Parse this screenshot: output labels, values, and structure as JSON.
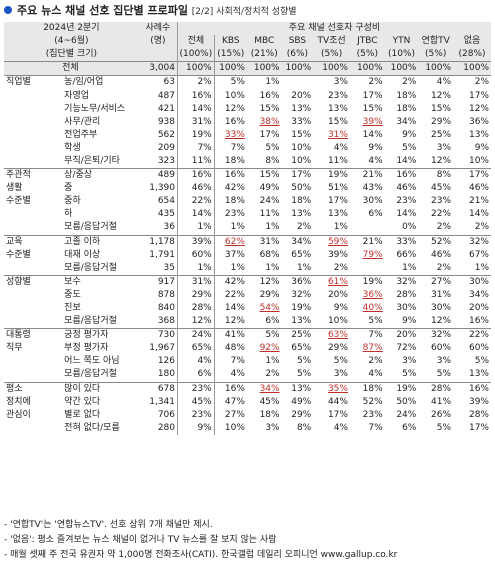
{
  "title": {
    "main": "주요 뉴스 채널 선호 집단별 프로파일",
    "sub": "[2/2] 사회적/정치적 성향별"
  },
  "header": {
    "period_line1": "2024년 2분기",
    "period_line2": "(4~6월)",
    "group_size_label": "(집단별 크기)",
    "sample_line1": "사례수",
    "sample_line2": "(명)",
    "channel_group": "주요 채널 선호자 구성비",
    "columns": [
      "전체",
      "KBS",
      "MBC",
      "SBS",
      "TV조선",
      "JTBC",
      "YTN",
      "연합TV",
      "없음"
    ],
    "sizes": [
      "(100%)",
      "(15%)",
      "(21%)",
      "(6%)",
      "(5%)",
      "(5%)",
      "(10%)",
      "(5%)",
      "(28%)"
    ]
  },
  "rows": [
    {
      "cat": "전체",
      "sub": "",
      "n": "3,004",
      "v": [
        "100%",
        "100%",
        "100%",
        "100%",
        "100%",
        "100%",
        "100%",
        "100%",
        "100%"
      ],
      "total": true
    },
    {
      "cat": "직업별",
      "sub": "농/임/어업",
      "n": "63",
      "v": [
        "2%",
        "5%",
        "1%",
        "",
        "3%",
        "2%",
        "2%",
        "4%",
        "2%"
      ],
      "sep": true
    },
    {
      "cat": "",
      "sub": "자영업",
      "n": "487",
      "v": [
        "16%",
        "10%",
        "16%",
        "20%",
        "23%",
        "17%",
        "18%",
        "12%",
        "17%"
      ]
    },
    {
      "cat": "",
      "sub": "기능노무/서비스",
      "n": "421",
      "v": [
        "14%",
        "12%",
        "15%",
        "13%",
        "13%",
        "15%",
        "18%",
        "15%",
        "12%"
      ]
    },
    {
      "cat": "",
      "sub": "사무/관리",
      "n": "938",
      "v": [
        "31%",
        "16%",
        "38%",
        "33%",
        "15%",
        "39%",
        "34%",
        "29%",
        "36%"
      ],
      "u": [
        2,
        5
      ]
    },
    {
      "cat": "",
      "sub": "전업주부",
      "n": "562",
      "v": [
        "19%",
        "33%",
        "17%",
        "15%",
        "31%",
        "14%",
        "9%",
        "25%",
        "13%"
      ],
      "u": [
        1,
        4
      ]
    },
    {
      "cat": "",
      "sub": "학생",
      "n": "209",
      "v": [
        "7%",
        "7%",
        "5%",
        "10%",
        "4%",
        "9%",
        "5%",
        "3%",
        "9%"
      ]
    },
    {
      "cat": "",
      "sub": "무직/은퇴/기타",
      "n": "323",
      "v": [
        "11%",
        "18%",
        "8%",
        "10%",
        "11%",
        "4%",
        "14%",
        "12%",
        "10%"
      ]
    },
    {
      "cat": "주관적",
      "sub": "상/중상",
      "n": "489",
      "v": [
        "16%",
        "16%",
        "15%",
        "17%",
        "19%",
        "21%",
        "16%",
        "8%",
        "17%"
      ],
      "sep": true
    },
    {
      "cat": "생활",
      "sub": "중",
      "n": "1,390",
      "v": [
        "46%",
        "42%",
        "49%",
        "50%",
        "51%",
        "43%",
        "46%",
        "45%",
        "46%"
      ]
    },
    {
      "cat": "수준별",
      "sub": "중하",
      "n": "654",
      "v": [
        "22%",
        "18%",
        "24%",
        "18%",
        "17%",
        "30%",
        "23%",
        "23%",
        "21%"
      ]
    },
    {
      "cat": "",
      "sub": "하",
      "n": "435",
      "v": [
        "14%",
        "23%",
        "11%",
        "13%",
        "13%",
        "6%",
        "14%",
        "22%",
        "14%"
      ]
    },
    {
      "cat": "",
      "sub": "모름/응답거절",
      "n": "36",
      "v": [
        "1%",
        "1%",
        "1%",
        "2%",
        "1%",
        "",
        "0%",
        "2%",
        "2%"
      ]
    },
    {
      "cat": "교육",
      "sub": "고졸 이하",
      "n": "1,178",
      "v": [
        "39%",
        "62%",
        "31%",
        "34%",
        "59%",
        "21%",
        "33%",
        "52%",
        "32%"
      ],
      "sep": true,
      "u": [
        1,
        4
      ]
    },
    {
      "cat": "수준별",
      "sub": "대재 이상",
      "n": "1,791",
      "v": [
        "60%",
        "37%",
        "68%",
        "65%",
        "39%",
        "79%",
        "66%",
        "46%",
        "67%"
      ],
      "u": [
        5
      ]
    },
    {
      "cat": "",
      "sub": "모름/응답거절",
      "n": "35",
      "v": [
        "1%",
        "1%",
        "1%",
        "1%",
        "2%",
        "",
        "1%",
        "2%",
        "1%"
      ]
    },
    {
      "cat": "성향별",
      "sub": "보수",
      "n": "917",
      "v": [
        "31%",
        "42%",
        "12%",
        "36%",
        "61%",
        "19%",
        "32%",
        "27%",
        "30%"
      ],
      "sep": true,
      "u": [
        4
      ]
    },
    {
      "cat": "",
      "sub": "중도",
      "n": "878",
      "v": [
        "29%",
        "22%",
        "29%",
        "32%",
        "20%",
        "36%",
        "28%",
        "31%",
        "34%"
      ],
      "u": [
        5
      ]
    },
    {
      "cat": "",
      "sub": "진보",
      "n": "840",
      "v": [
        "28%",
        "14%",
        "54%",
        "19%",
        "9%",
        "40%",
        "30%",
        "30%",
        "20%"
      ],
      "u": [
        2,
        5
      ]
    },
    {
      "cat": "",
      "sub": "모름/응답거절",
      "n": "368",
      "v": [
        "12%",
        "12%",
        "6%",
        "13%",
        "10%",
        "5%",
        "9%",
        "12%",
        "16%"
      ]
    },
    {
      "cat": "대통령",
      "sub": "긍정 평가자",
      "n": "730",
      "v": [
        "24%",
        "41%",
        "5%",
        "25%",
        "63%",
        "7%",
        "20%",
        "32%",
        "22%"
      ],
      "sep": true,
      "u": [
        4
      ]
    },
    {
      "cat": "직무",
      "sub": "부정 평가자",
      "n": "1,967",
      "v": [
        "65%",
        "48%",
        "92%",
        "65%",
        "29%",
        "87%",
        "72%",
        "60%",
        "60%"
      ],
      "u": [
        2,
        5
      ]
    },
    {
      "cat": "",
      "sub": "어느 쪽도 아님",
      "n": "126",
      "v": [
        "4%",
        "7%",
        "1%",
        "5%",
        "5%",
        "2%",
        "3%",
        "3%",
        "5%"
      ]
    },
    {
      "cat": "",
      "sub": "모름/응답거절",
      "n": "180",
      "v": [
        "6%",
        "4%",
        "2%",
        "5%",
        "3%",
        "4%",
        "5%",
        "5%",
        "13%"
      ]
    },
    {
      "cat": "평소",
      "sub": "많이 있다",
      "n": "678",
      "v": [
        "23%",
        "16%",
        "34%",
        "13%",
        "35%",
        "18%",
        "19%",
        "28%",
        "16%"
      ],
      "sep": true,
      "u": [
        2,
        4
      ]
    },
    {
      "cat": "정치에",
      "sub": "약간 있다",
      "n": "1,341",
      "v": [
        "45%",
        "47%",
        "45%",
        "49%",
        "44%",
        "52%",
        "50%",
        "41%",
        "39%"
      ]
    },
    {
      "cat": "관심이",
      "sub": "별로 없다",
      "n": "706",
      "v": [
        "23%",
        "27%",
        "18%",
        "29%",
        "17%",
        "23%",
        "24%",
        "26%",
        "28%"
      ]
    },
    {
      "cat": "",
      "sub": "전혀 없다/모름",
      "n": "280",
      "v": [
        "9%",
        "10%",
        "3%",
        "8%",
        "4%",
        "7%",
        "6%",
        "5%",
        "17%"
      ]
    }
  ],
  "notes": [
    "- '연합TV'는 '연합뉴스TV'. 선호 상위 7개 채널만 제시.",
    "- '없음': 평소 즐겨보는 뉴스 채널이 없거나 TV 뉴스를 잘 보지 않는 사람",
    "- 매월 셋째 주 전국 유권자 약 1,000명 전화조사(CATI). 한국갤럽 데일리 오피니언 www.gallup.co.kr"
  ]
}
